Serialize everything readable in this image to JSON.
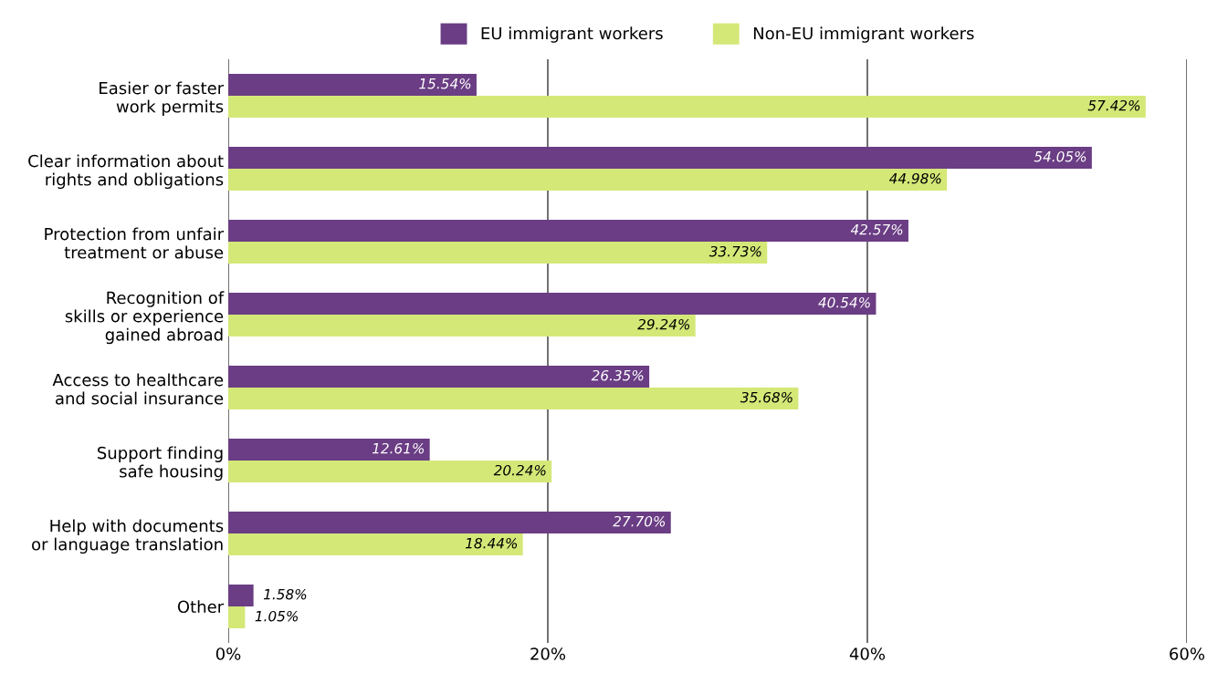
{
  "chart_data": {
    "type": "bar",
    "orientation": "horizontal",
    "categories": [
      "Easier or faster\nwork permits",
      "Clear information about\nrights and obligations",
      "Protection from unfair\ntreatment or abuse",
      "Recognition of\nskills or experience\ngained abroad",
      "Access to healthcare\nand social insurance",
      "Support finding\nsafe housing",
      "Help with documents\nor language translation",
      "Other"
    ],
    "series": [
      {
        "name": "EU immigrant workers",
        "color": "#6a3d84",
        "values": [
          15.54,
          54.05,
          42.57,
          40.54,
          26.35,
          12.61,
          27.7,
          1.58
        ],
        "value_labels": [
          "15.54%",
          "54.05%",
          "42.57%",
          "40.54%",
          "26.35%",
          "12.61%",
          "27.70%",
          "1.58%"
        ]
      },
      {
        "name": "Non-EU immigrant workers",
        "color": "#d4e878",
        "values": [
          57.42,
          44.98,
          33.73,
          29.24,
          35.68,
          20.24,
          18.44,
          1.05
        ],
        "value_labels": [
          "57.42%",
          "44.98%",
          "33.73%",
          "29.24%",
          "35.68%",
          "20.24%",
          "18.44%",
          "1.05%"
        ]
      }
    ],
    "xlim": [
      0,
      60
    ],
    "xticks": [
      {
        "value": 0,
        "label": "0%"
      },
      {
        "value": 20,
        "label": "20%"
      },
      {
        "value": 40,
        "label": "40%"
      },
      {
        "value": 60,
        "label": "60%"
      }
    ],
    "grid": "x",
    "legend": "top"
  }
}
